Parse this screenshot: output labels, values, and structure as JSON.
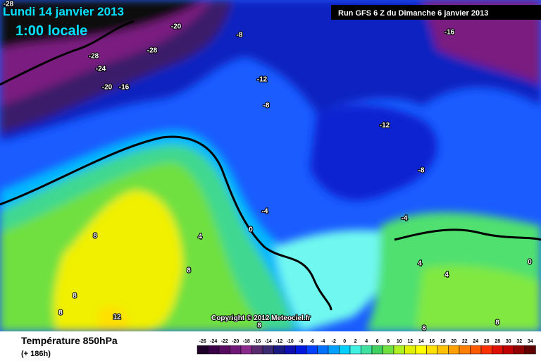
{
  "header": {
    "date": "Lundi 14 janvier 2013",
    "time": "1:00 locale",
    "run": "Run GFS 6 Z du Dimanche 6 janvier 2013"
  },
  "map": {
    "copyright": "Copyright © 2012 Meteociel.fr",
    "contour_labels": [
      -28,
      -20,
      -8,
      -16,
      -28,
      -28,
      -24,
      -20,
      -16,
      -12,
      -8,
      -12,
      -8,
      -4,
      0,
      4,
      8,
      -4,
      4,
      4,
      0,
      8,
      8,
      8,
      12,
      8,
      8,
      8
    ]
  },
  "footer": {
    "title": "Température 850hPa",
    "lead": "(+ 186h)"
  },
  "legend": {
    "values": [
      -26,
      -24,
      -22,
      -20,
      -18,
      -16,
      -14,
      -12,
      -10,
      -8,
      -6,
      -4,
      -2,
      0,
      2,
      4,
      6,
      8,
      10,
      12,
      14,
      16,
      18,
      20,
      22,
      24,
      26,
      28,
      30,
      32,
      34
    ],
    "colors": [
      "#1e0028",
      "#3a0048",
      "#560a60",
      "#701878",
      "#8a2a8c",
      "#5a2a6e",
      "#3a2a72",
      "#1a1a80",
      "#1010b0",
      "#0018e0",
      "#0040ff",
      "#0070ff",
      "#00a0ff",
      "#00d0ff",
      "#40f0e0",
      "#40e0a0",
      "#40d060",
      "#70e040",
      "#b0f020",
      "#e0f000",
      "#ffff00",
      "#ffe000",
      "#ffc000",
      "#ffa000",
      "#ff8000",
      "#ff5a00",
      "#ff3000",
      "#e01000",
      "#c00000",
      "#900000",
      "#600000"
    ]
  }
}
